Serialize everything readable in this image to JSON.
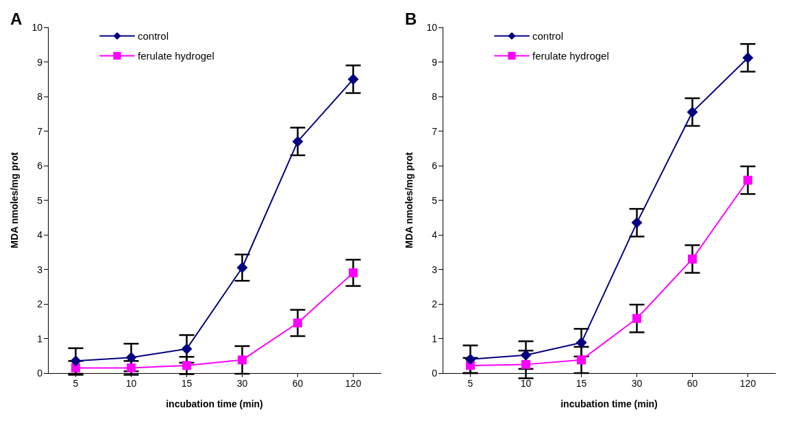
{
  "chart_data": [
    {
      "type": "line",
      "title": "A",
      "xlabel": "incubation time (min)",
      "ylabel": "MDA nmoles/mg prot",
      "categories": [
        "5",
        "10",
        "15",
        "30",
        "60",
        "120"
      ],
      "ylim": [
        0,
        10
      ],
      "yticks": [
        0,
        1,
        2,
        3,
        4,
        5,
        6,
        7,
        8,
        9,
        10
      ],
      "grid": false,
      "legend": "top left",
      "series": [
        {
          "name": "control",
          "color": "#000080",
          "marker": "diamond",
          "values": [
            0.35,
            0.45,
            0.7,
            3.05,
            6.7,
            8.5
          ],
          "errors": [
            0.37,
            0.4,
            0.4,
            0.38,
            0.4,
            0.4
          ]
        },
        {
          "name": "ferulate hydrogel",
          "color": "#ff00ff",
          "marker": "square",
          "values": [
            0.15,
            0.15,
            0.22,
            0.38,
            1.45,
            2.9
          ],
          "errors": [
            0.2,
            0.2,
            0.25,
            0.4,
            0.38,
            0.38
          ]
        }
      ]
    },
    {
      "type": "line",
      "title": "B",
      "xlabel": "incubation time (min)",
      "ylabel": "MDA nmoles/mg prot",
      "categories": [
        "5",
        "10",
        "15",
        "30",
        "60",
        "120"
      ],
      "ylim": [
        0,
        10
      ],
      "yticks": [
        0,
        1,
        2,
        3,
        4,
        5,
        6,
        7,
        8,
        9,
        10
      ],
      "grid": false,
      "legend": "top left",
      "series": [
        {
          "name": "control",
          "color": "#000080",
          "marker": "diamond",
          "values": [
            0.4,
            0.52,
            0.88,
            4.35,
            7.55,
            9.12
          ],
          "errors": [
            0.4,
            0.4,
            0.4,
            0.4,
            0.4,
            0.4
          ]
        },
        {
          "name": "ferulate hydrogel",
          "color": "#ff00ff",
          "marker": "square",
          "values": [
            0.22,
            0.25,
            0.38,
            1.58,
            3.3,
            5.58
          ],
          "errors": [
            0.22,
            0.4,
            0.38,
            0.4,
            0.4,
            0.4
          ]
        }
      ]
    }
  ]
}
